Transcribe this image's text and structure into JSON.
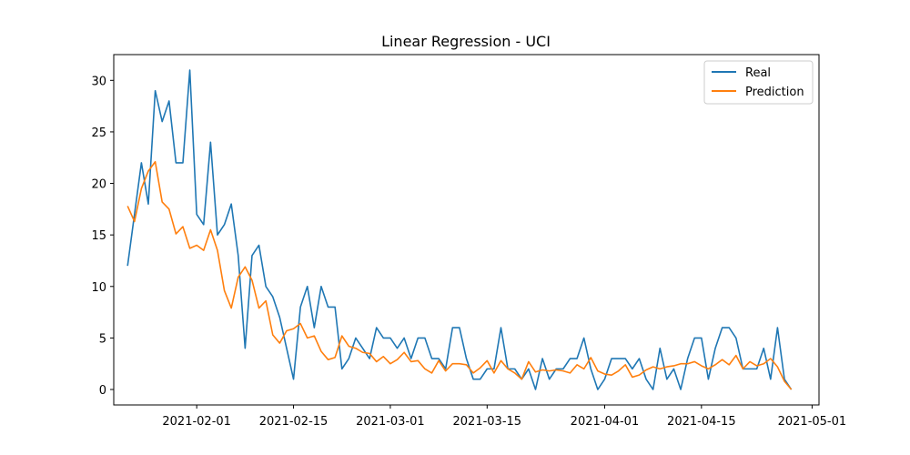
{
  "chart_data": {
    "type": "line",
    "title": "Linear Regression - UCI",
    "xlabel": "",
    "ylabel": "",
    "x_type": "date",
    "x_start": "2021-01-22",
    "xlim": [
      "2021-01-20",
      "2021-05-02"
    ],
    "ylim": [
      -1.5,
      32.5
    ],
    "x_ticks": [
      "2021-02-01",
      "2021-02-15",
      "2021-03-01",
      "2021-03-15",
      "2021-04-01",
      "2021-04-15",
      "2021-05-01"
    ],
    "y_ticks": [
      0,
      5,
      10,
      15,
      20,
      25,
      30
    ],
    "grid": false,
    "legend_position": "top-right",
    "series": [
      {
        "name": "Real",
        "color": "#1f77b4",
        "values": [
          12,
          17,
          22,
          18,
          29,
          26,
          28,
          22,
          22,
          31,
          17,
          16,
          24,
          15,
          16,
          18,
          13,
          4,
          13,
          14,
          10,
          9,
          7,
          4,
          1,
          8,
          10,
          6,
          10,
          8,
          8,
          2,
          3,
          5,
          4,
          3,
          6,
          5,
          5,
          4,
          5,
          3,
          5,
          5,
          3,
          3,
          2,
          6,
          6,
          3,
          1,
          1,
          2,
          2,
          6,
          2,
          2,
          1,
          2,
          0,
          3,
          1,
          2,
          2,
          3,
          3,
          5,
          2,
          0,
          1,
          3,
          3,
          3,
          2,
          3,
          1,
          0,
          4,
          1,
          2,
          0,
          3,
          5,
          5,
          1,
          4,
          6,
          6,
          5,
          2,
          2,
          2,
          4,
          1,
          6,
          1,
          0
        ]
      },
      {
        "name": "Prediction",
        "color": "#ff7f0e",
        "values": [
          17.8,
          16.3,
          19.5,
          21.2,
          22.1,
          18.2,
          17.5,
          15.1,
          15.8,
          13.7,
          14.0,
          13.5,
          15.5,
          13.5,
          9.6,
          7.9,
          10.9,
          11.9,
          10.6,
          7.9,
          8.6,
          5.3,
          4.5,
          5.7,
          5.9,
          6.4,
          5.0,
          5.2,
          3.7,
          2.9,
          3.1,
          5.2,
          4.2,
          4.0,
          3.6,
          3.5,
          2.7,
          3.2,
          2.5,
          2.9,
          3.6,
          2.7,
          2.8,
          2.0,
          1.6,
          2.8,
          1.8,
          2.5,
          2.5,
          2.4,
          1.6,
          2.1,
          2.8,
          1.6,
          2.8,
          2.0,
          1.6,
          1.0,
          2.7,
          1.7,
          1.9,
          1.8,
          1.9,
          1.8,
          1.6,
          2.4,
          2.0,
          3.1,
          1.8,
          1.5,
          1.4,
          1.8,
          2.4,
          1.2,
          1.4,
          1.9,
          2.2,
          2.0,
          2.2,
          2.3,
          2.5,
          2.5,
          2.7,
          2.3,
          2.0,
          2.4,
          2.9,
          2.4,
          3.3,
          2.0,
          2.7,
          2.3,
          2.5,
          3.0,
          2.2,
          0.8,
          0.0
        ]
      }
    ]
  }
}
